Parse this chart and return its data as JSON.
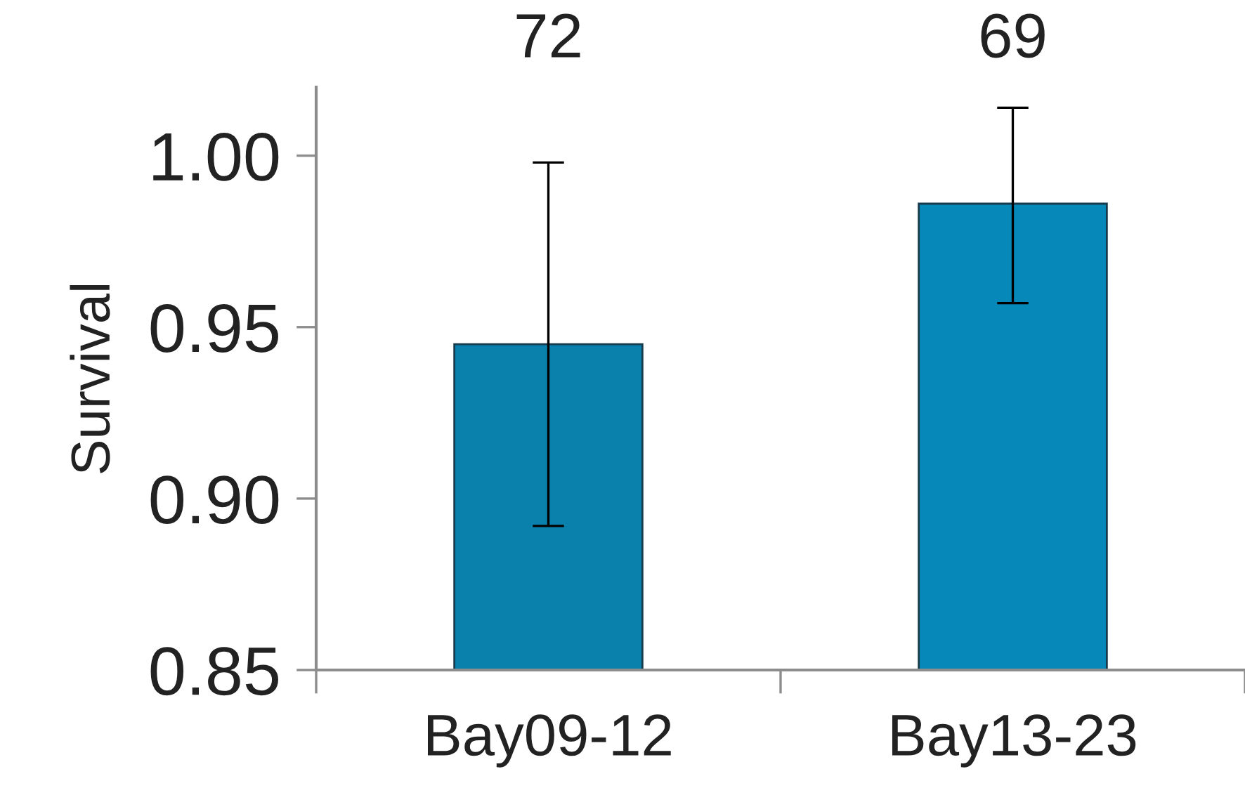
{
  "chart_data": {
    "type": "bar",
    "categories": [
      "Bay09-12",
      "Bay13-23"
    ],
    "values": [
      0.945,
      0.986
    ],
    "colors": [
      "#0a80ad",
      "#0689b8"
    ],
    "errors": [
      [
        0.892,
        0.998
      ],
      [
        0.957,
        1.014
      ]
    ],
    "ylabel": "Survival",
    "ylim": [
      0.85,
      1.02
    ],
    "yticks": [
      {
        "value": 0.85,
        "label": "0.85"
      },
      {
        "value": 0.9,
        "label": "0.90"
      },
      {
        "value": 0.95,
        "label": "0.95"
      },
      {
        "value": 1.0,
        "label": "1.00"
      }
    ],
    "annotations": [
      "72",
      "69"
    ],
    "grid": false,
    "legend": false
  }
}
